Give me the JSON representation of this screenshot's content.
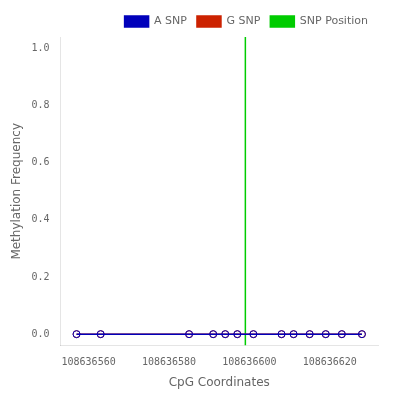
{
  "chart_data": {
    "type": "line",
    "xlabel": "CpG Coordinates",
    "ylabel": "Methylation Frequency",
    "x": [
      108636557,
      108636563,
      108636585,
      108636591,
      108636594,
      108636597,
      108636601,
      108636608,
      108636611,
      108636615,
      108636619,
      108636623,
      108636628
    ],
    "series": [
      {
        "name": "A SNP",
        "color": "#0000bb",
        "marker": "circle",
        "values": [
          0.0,
          0.0,
          0.0,
          0.0,
          0.0,
          0.0,
          0.0,
          0.0,
          0.0,
          0.0,
          0.0,
          0.0,
          0.0
        ]
      },
      {
        "name": "G SNP",
        "color": "#cc2200",
        "marker": "circle",
        "values": [
          0.0,
          0.0,
          0.0,
          0.0,
          0.0,
          0.0,
          0.0,
          0.0,
          0.0,
          0.0,
          0.0,
          0.0,
          0.0
        ]
      }
    ],
    "vline": {
      "name": "SNP Position",
      "x": 108636599,
      "color": "#00cc00"
    },
    "xlim": [
      108636553,
      108636632
    ],
    "xticks": [
      108636560,
      108636580,
      108636600,
      108636620
    ],
    "ylim": [
      -0.04,
      1.04
    ],
    "yticks": [
      {
        "value": 0.0,
        "label": "0.0"
      },
      {
        "value": 0.2,
        "label": "0.2"
      },
      {
        "value": 0.4,
        "label": "0.4"
      },
      {
        "value": 0.6,
        "label": "0.6"
      },
      {
        "value": 0.8,
        "label": "0.8"
      },
      {
        "value": 1.0,
        "label": "1.0"
      }
    ],
    "grid": false,
    "legend": "top"
  }
}
